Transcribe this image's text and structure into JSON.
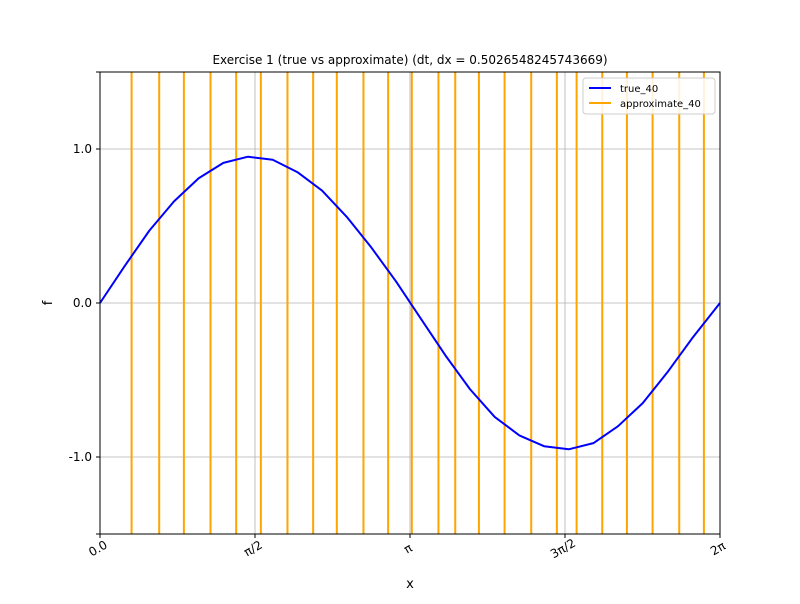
{
  "chart_data": {
    "type": "line",
    "title": "Exercise 1 (true vs approximate) (dt, dx = 0.5026548245743669)",
    "xlabel": "x",
    "ylabel": "f",
    "xlim": [
      0,
      6.283185307179586
    ],
    "ylim": [
      -1.5,
      1.5
    ],
    "x_ticks": [
      {
        "value": 0,
        "label": "0.0"
      },
      {
        "value": 1.5707963267948966,
        "label": "π/2"
      },
      {
        "value": 3.141592653589793,
        "label": "π"
      },
      {
        "value": 4.71238898038469,
        "label": "3π/2"
      },
      {
        "value": 6.283185307179586,
        "label": "2π"
      }
    ],
    "y_ticks": [
      {
        "value": 1.0,
        "label": "1.0"
      },
      {
        "value": 0.0,
        "label": "0.0"
      },
      {
        "value": -1.0,
        "label": "-1.0"
      }
    ],
    "grid": true,
    "legend_position": "top-right",
    "series": [
      {
        "name": "true_40",
        "color": "#0000ff",
        "style": "curve",
        "x": [
          0,
          0.25,
          0.5,
          0.75,
          1.0,
          1.25,
          1.5,
          1.75,
          2.0,
          2.25,
          2.5,
          2.75,
          3.0,
          3.25,
          3.5,
          3.75,
          4.0,
          4.25,
          4.5,
          4.75,
          5.0,
          5.25,
          5.5,
          5.75,
          6.0,
          6.283
        ],
        "y": [
          0.0,
          0.24,
          0.47,
          0.66,
          0.81,
          0.91,
          0.95,
          0.93,
          0.85,
          0.73,
          0.56,
          0.36,
          0.14,
          -0.1,
          -0.34,
          -0.56,
          -0.74,
          -0.86,
          -0.93,
          -0.95,
          -0.91,
          -0.8,
          -0.65,
          -0.45,
          -0.23,
          0.0
        ]
      },
      {
        "name": "approximate_40",
        "color": "#ffa500",
        "style": "vertical-lines",
        "x": [
          0.32,
          0.6,
          0.85,
          1.12,
          1.38,
          1.63,
          1.9,
          2.16,
          2.4,
          2.67,
          2.92,
          3.16,
          3.43,
          3.6,
          3.84,
          4.1,
          4.37,
          4.63,
          4.83,
          5.09,
          5.34,
          5.6,
          5.87,
          6.12
        ]
      }
    ]
  }
}
